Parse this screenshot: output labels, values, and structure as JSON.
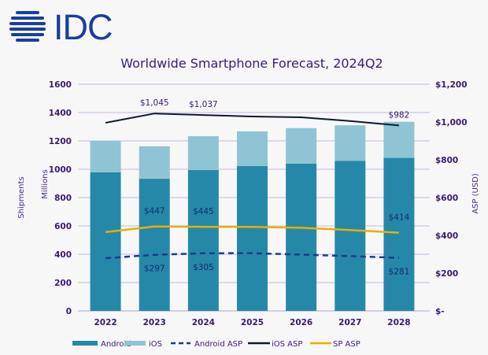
{
  "logo": {
    "text": "IDC",
    "color": "#1a3e9e"
  },
  "chart_data": {
    "type": "bar",
    "title": "Worldwide Smartphone Forecast, 2024Q2",
    "categories": [
      "2022",
      "2023",
      "2024",
      "2025",
      "2026",
      "2027",
      "2028"
    ],
    "xlabel": "",
    "ylabel": "Shipments",
    "ylabel_sub": "Millions",
    "y2label": "ASP (USD)",
    "ylim": [
      0,
      1600
    ],
    "y_ticks": [
      0,
      200,
      400,
      600,
      800,
      1000,
      1200,
      1400,
      1600
    ],
    "y_tick_labels": [
      "0",
      "200",
      "400",
      "600",
      "800",
      "1000",
      "1200",
      "1400",
      "1600"
    ],
    "y2lim": [
      0,
      1200
    ],
    "y2_ticks": [
      0,
      200,
      400,
      600,
      800,
      1000,
      1200
    ],
    "y2_tick_labels": [
      "$-",
      "$200",
      "$400",
      "$600",
      "$800",
      "$1,000",
      "$1,200"
    ],
    "grid": true,
    "stacked": true,
    "legend_position": "bottom",
    "series": [
      {
        "name": "Android",
        "kind": "bar",
        "axis": "left",
        "color": "#2688a8",
        "values": [
          978,
          933,
          995,
          1022,
          1040,
          1060,
          1080
        ]
      },
      {
        "name": "iOS",
        "kind": "bar",
        "axis": "left",
        "color": "#8fc4d4",
        "values": [
          222,
          229,
          238,
          245,
          250,
          250,
          255
        ]
      },
      {
        "name": "Android ASP",
        "kind": "line",
        "style": "dashed",
        "axis": "right",
        "color": "#1c3c8c",
        "values": [
          279,
          297,
          305,
          306,
          298,
          290,
          281
        ]
      },
      {
        "name": "iOS ASP",
        "kind": "line",
        "style": "solid",
        "axis": "right",
        "color": "#0d1b2a",
        "values": [
          996,
          1045,
          1037,
          1029,
          1025,
          1005,
          982
        ]
      },
      {
        "name": "SP ASP",
        "kind": "line",
        "style": "solid",
        "axis": "right",
        "color": "#e6b000",
        "values": [
          417,
          447,
          445,
          445,
          440,
          428,
          414
        ]
      }
    ],
    "annotations": [
      {
        "series": "iOS ASP",
        "category": "2023",
        "text": "$1,045",
        "position": "above"
      },
      {
        "series": "iOS ASP",
        "category": "2024",
        "text": "$1,037",
        "position": "above"
      },
      {
        "series": "iOS ASP",
        "category": "2028",
        "text": "$982",
        "position": "above"
      },
      {
        "series": "SP ASP",
        "category": "2023",
        "text": "$447",
        "position": "above"
      },
      {
        "series": "SP ASP",
        "category": "2024",
        "text": "$445",
        "position": "above"
      },
      {
        "series": "SP ASP",
        "category": "2028",
        "text": "$414",
        "position": "above"
      },
      {
        "series": "Android ASP",
        "category": "2023",
        "text": "$297",
        "position": "below"
      },
      {
        "series": "Android ASP",
        "category": "2024",
        "text": "$305",
        "position": "below"
      },
      {
        "series": "Android ASP",
        "category": "2028",
        "text": "$281",
        "position": "below"
      }
    ]
  }
}
